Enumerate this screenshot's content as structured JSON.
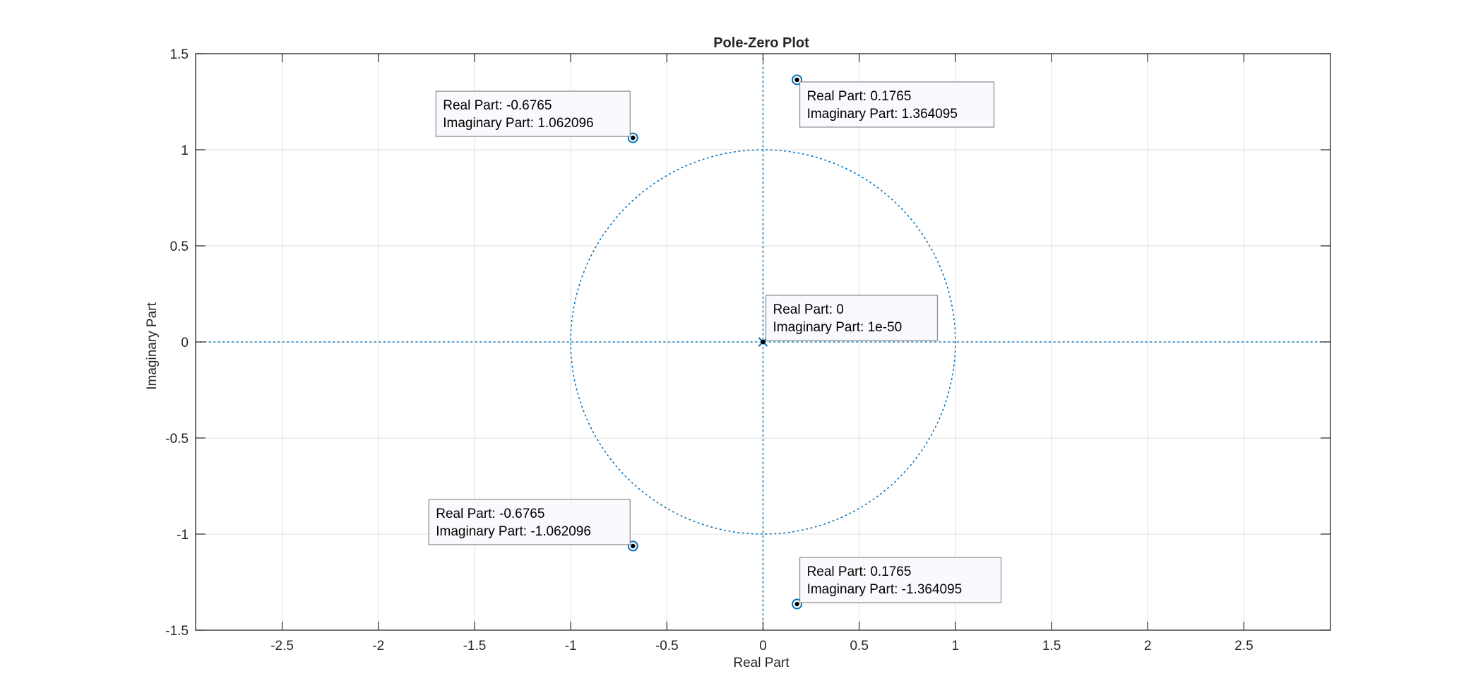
{
  "chart_data": {
    "type": "scatter",
    "title": "Pole-Zero Plot",
    "xlabel": "Real Part",
    "ylabel": "Imaginary Part",
    "xlim": [
      -2.95,
      2.95
    ],
    "ylim": [
      -1.5,
      1.5
    ],
    "xticks": [
      -2.5,
      -2,
      -1.5,
      -1,
      -0.5,
      0,
      0.5,
      1,
      1.5,
      2,
      2.5
    ],
    "xtick_labels": [
      "-2.5",
      "-2",
      "-1.5",
      "-1",
      "-0.5",
      "0",
      "0.5",
      "1",
      "1.5",
      "2",
      "2.5"
    ],
    "yticks": [
      -1.5,
      -1,
      -0.5,
      0,
      0.5,
      1,
      1.5
    ],
    "ytick_labels": [
      "-1.5",
      "-1",
      "-0.5",
      "0",
      "0.5",
      "1",
      "1.5"
    ],
    "grid": true,
    "unit_circle": true,
    "colors": {
      "marker": "#0072bd",
      "guide": "#0072bd",
      "grid": "#dfdfdf",
      "axis": "#262626",
      "tooltip_bg": "#fafafe",
      "tooltip_border": "#8c8c8c"
    },
    "zeros": [
      {
        "re": 0.1765,
        "im": 1.364095
      },
      {
        "re": -0.6765,
        "im": 1.062096
      },
      {
        "re": -0.6765,
        "im": -1.062096
      },
      {
        "re": 0.1765,
        "im": -1.364095
      }
    ],
    "poles": [
      {
        "re": 0,
        "im": 0
      }
    ],
    "datatips": [
      {
        "name": "datatip-zero-1",
        "lines": [
          "Real Part: 0.1765",
          "Imaginary Part: 1.364095"
        ],
        "anchor_re": 0.1765,
        "anchor_im": 1.364095,
        "placement": "below-right"
      },
      {
        "name": "datatip-zero-2",
        "lines": [
          "Real Part: -0.6765",
          "Imaginary Part: 1.062096"
        ],
        "anchor_re": -0.6765,
        "anchor_im": 1.062096,
        "placement": "above-left"
      },
      {
        "name": "datatip-pole",
        "lines": [
          "Real Part: 0",
          "Imaginary Part: 1e-50"
        ],
        "anchor_re": 0,
        "anchor_im": 0,
        "placement": "above-right"
      },
      {
        "name": "datatip-zero-3",
        "lines": [
          "Real Part: -0.6765",
          "Imaginary Part: -1.062096"
        ],
        "anchor_re": -0.6765,
        "anchor_im": -1.062096,
        "placement": "above-left"
      },
      {
        "name": "datatip-zero-4",
        "lines": [
          "Real Part: 0.1765",
          "Imaginary Part: -1.364095"
        ],
        "anchor_re": 0.1765,
        "anchor_im": -1.364095,
        "placement": "above-right"
      }
    ]
  }
}
